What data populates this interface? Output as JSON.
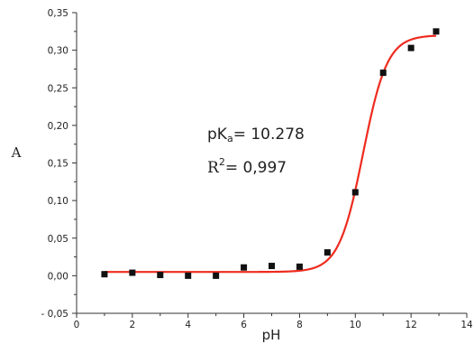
{
  "chart_data": {
    "type": "scatter",
    "xlabel": "pH",
    "ylabel": "A",
    "xlim": [
      0,
      14
    ],
    "ylim": [
      -0.05,
      0.35
    ],
    "x_ticks": [
      0,
      2,
      4,
      6,
      8,
      10,
      12,
      14
    ],
    "y_ticks": [
      -0.05,
      0,
      0.05,
      0.1,
      0.15,
      0.2,
      0.25,
      0.3,
      0.35
    ],
    "x_tick_labels": [
      "0",
      "2",
      "4",
      "6",
      "8",
      "10",
      "12",
      "14"
    ],
    "y_tick_labels": [
      "- 0,05",
      "0,00",
      "0,05",
      "0,10",
      "0,15",
      "0,20",
      "0,25",
      "0,30",
      "0,35"
    ],
    "grid": false,
    "series": [
      {
        "kind": "points",
        "marker": "square",
        "color": "#111111",
        "x": [
          1,
          2,
          3,
          4,
          5,
          6,
          7,
          8,
          9,
          10,
          11,
          12,
          12.9
        ],
        "y": [
          0.002,
          0.004,
          0.001,
          0.0,
          0.0,
          0.011,
          0.013,
          0.012,
          0.031,
          0.111,
          0.27,
          0.303,
          0.325
        ]
      },
      {
        "kind": "fit",
        "model": "sigmoid",
        "color": "#ee2b1f",
        "pKa": 10.278,
        "bottom": 0.005,
        "top": 0.32,
        "x_range": [
          1,
          12.9
        ]
      }
    ],
    "annotations": {
      "pka_prefix": "pK",
      "pka_sub": "a",
      "pka_value": "= 10.278",
      "r2_base": "R",
      "r2_sup": "2",
      "r2_value": "= 0,997"
    }
  }
}
